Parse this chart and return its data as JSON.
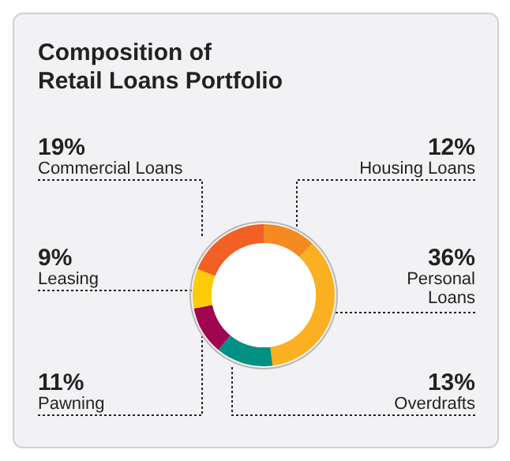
{
  "chart_data": {
    "type": "donut",
    "title": "Composition of Retail Loans Portfolio",
    "categories": [
      "Housing Loans",
      "Personal Loans",
      "Overdrafts",
      "Pawning",
      "Leasing",
      "Commercial Loans"
    ],
    "values": [
      12,
      36,
      13,
      11,
      9,
      19
    ],
    "colors": [
      "#f58a21",
      "#fbb021",
      "#009084",
      "#a0064f",
      "#fdcb0a",
      "#f26024"
    ],
    "value_labels": [
      "12%",
      "36%",
      "13%",
      "11%",
      "9%",
      "19%"
    ],
    "legend": false
  }
}
